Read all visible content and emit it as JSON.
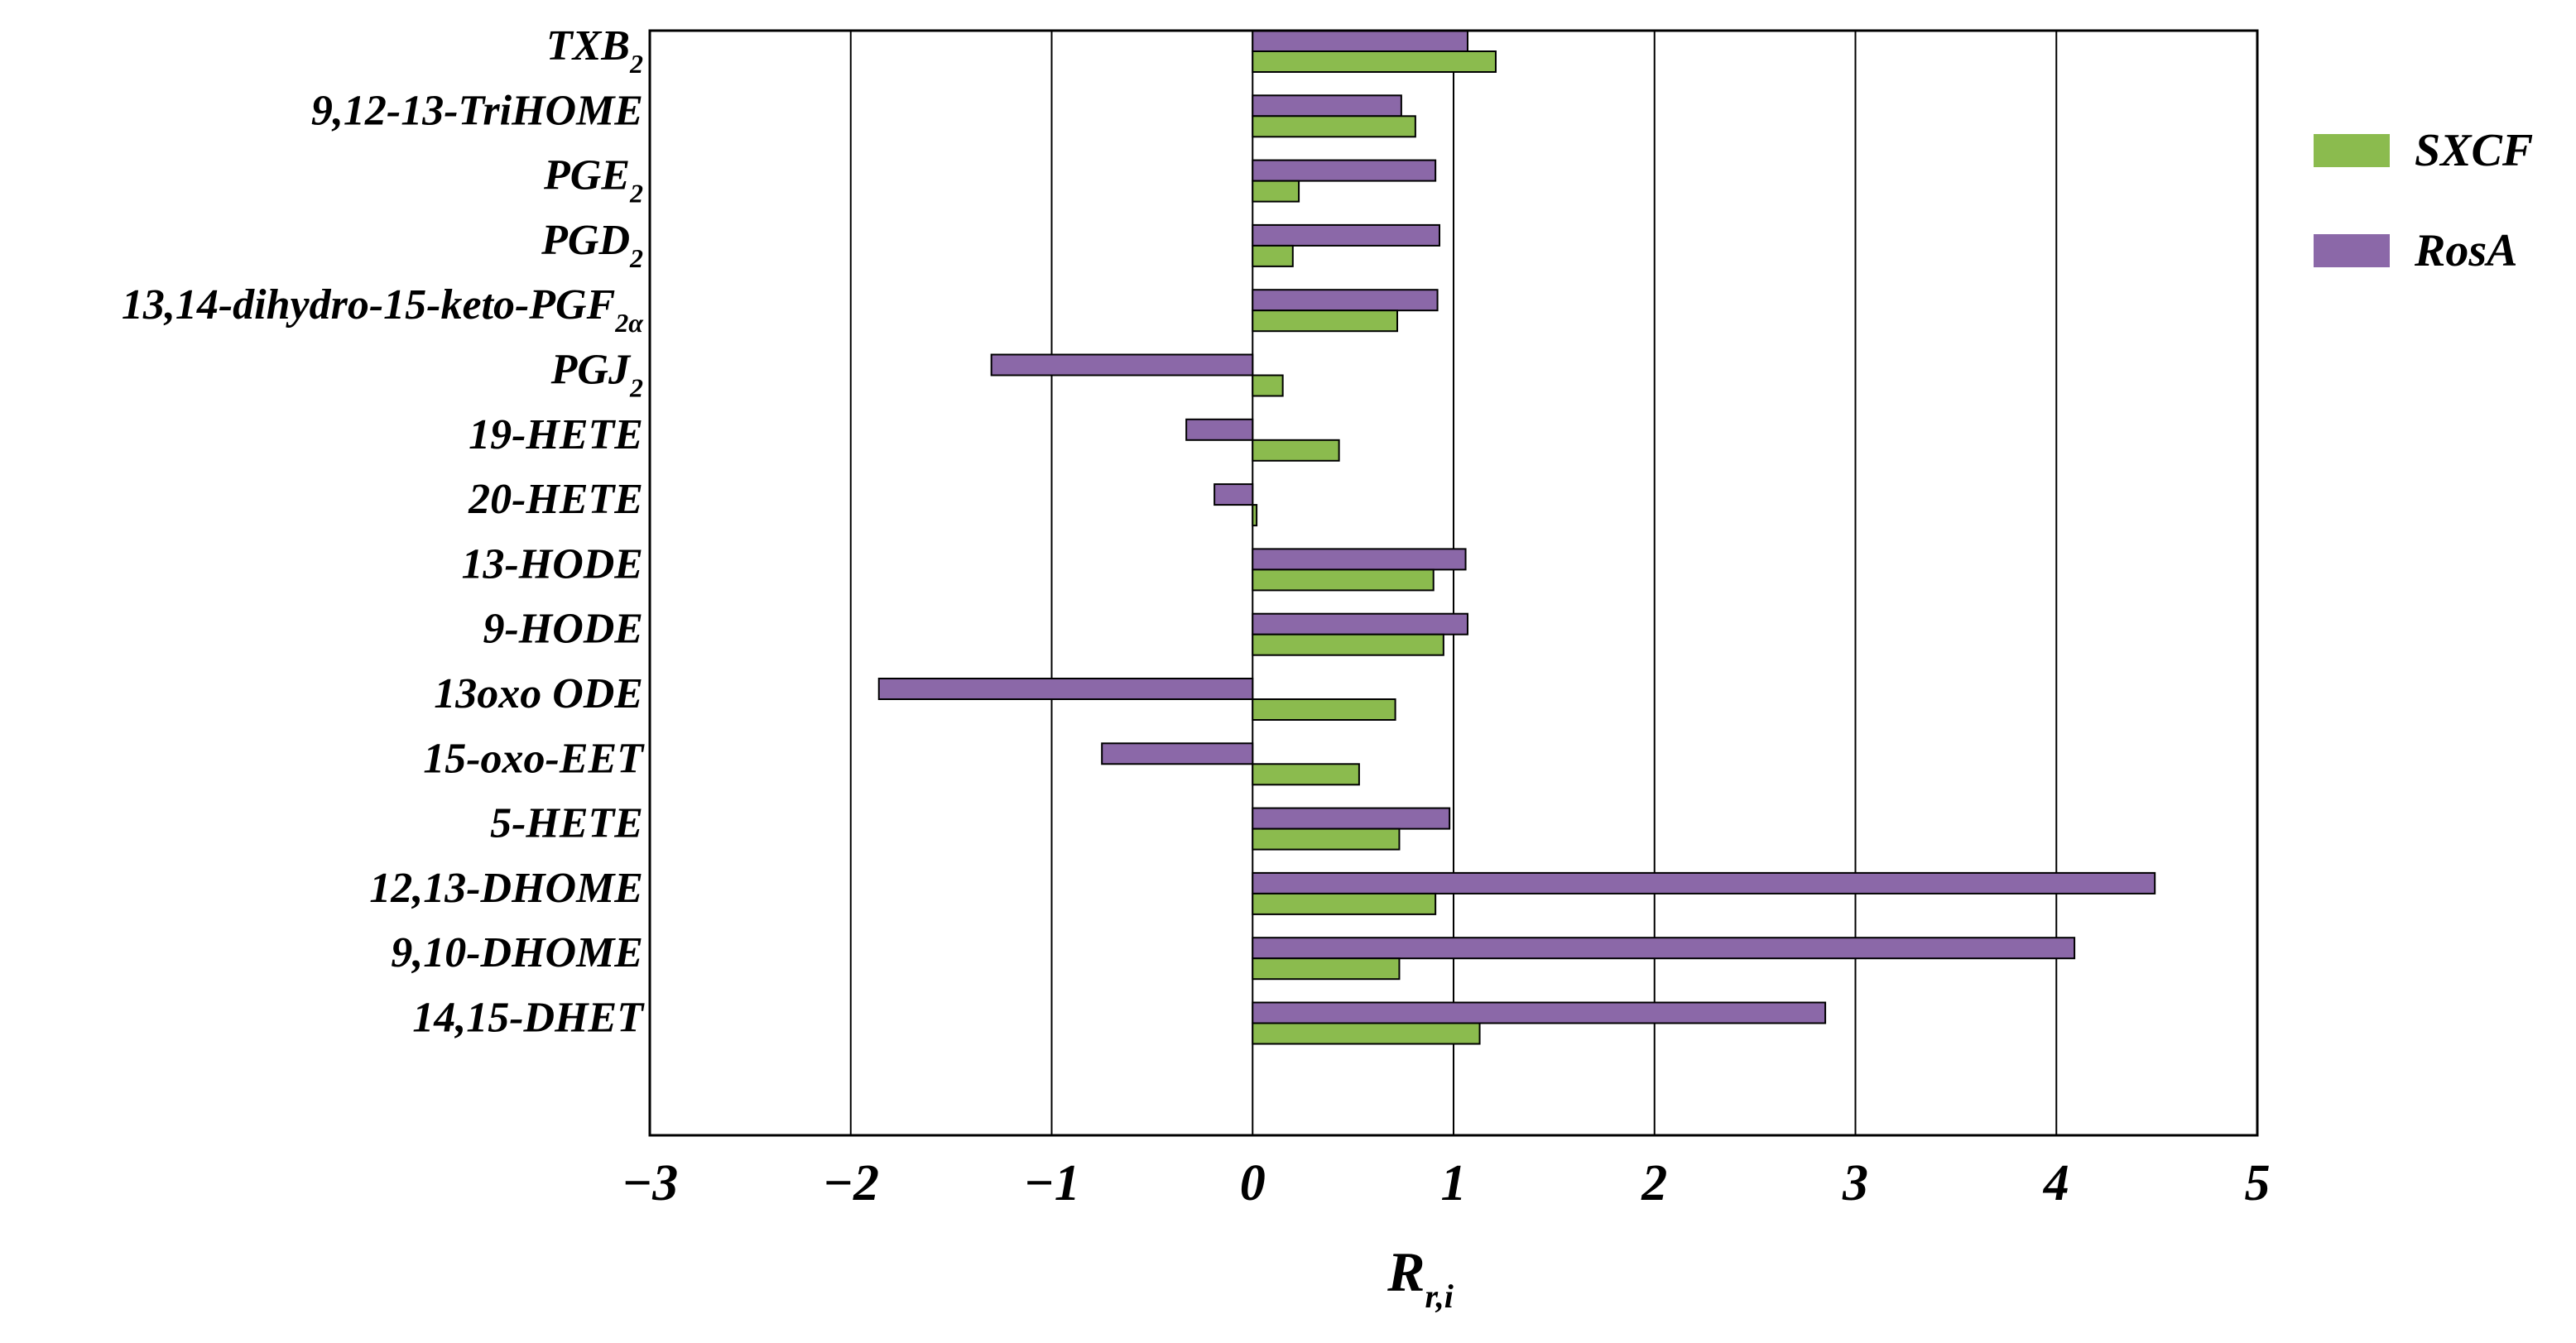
{
  "chart_data": {
    "type": "bar",
    "orientation": "horizontal",
    "categories": [
      "TXB2",
      "9,12-13-TriHOME",
      "PGE2",
      "PGD2",
      "13,14-dihydro-15-keto-PGF2α",
      "PGJ2",
      "19-HETE",
      "20-HETE",
      "13-HODE",
      "9-HODE",
      "13oxo ODE",
      "15-oxo-EET",
      "5-HETE",
      "12,13-DHOME",
      "9,10-DHOME",
      "14,15-DHET"
    ],
    "category_labels": [
      {
        "main": "TXB",
        "sub": "2"
      },
      {
        "main": "9,12-13-TriHOME",
        "sub": ""
      },
      {
        "main": "PGE",
        "sub": "2"
      },
      {
        "main": "PGD",
        "sub": "2"
      },
      {
        "main": "13,14-dihydro-15-keto-PGF",
        "sub": "2α"
      },
      {
        "main": "PGJ",
        "sub": "2"
      },
      {
        "main": "19-HETE",
        "sub": ""
      },
      {
        "main": "20-HETE",
        "sub": ""
      },
      {
        "main": "13-HODE",
        "sub": ""
      },
      {
        "main": "9-HODE",
        "sub": ""
      },
      {
        "main": "13oxo ODE",
        "sub": ""
      },
      {
        "main": "15-oxo-EET",
        "sub": ""
      },
      {
        "main": "5-HETE",
        "sub": ""
      },
      {
        "main": "12,13-DHOME",
        "sub": ""
      },
      {
        "main": "9,10-DHOME",
        "sub": ""
      },
      {
        "main": "14,15-DHET",
        "sub": ""
      }
    ],
    "series": [
      {
        "name": "RosA",
        "color": "#8B68A8",
        "values": [
          1.07,
          0.74,
          0.91,
          0.93,
          0.92,
          -1.3,
          -0.33,
          -0.19,
          1.06,
          1.07,
          -1.86,
          -0.75,
          0.98,
          4.49,
          4.09,
          2.85
        ]
      },
      {
        "name": "SXCF",
        "color": "#8BBB4E",
        "values": [
          1.21,
          0.81,
          0.23,
          0.2,
          0.72,
          0.15,
          0.43,
          0.02,
          0.9,
          0.95,
          0.71,
          0.53,
          0.73,
          0.91,
          0.73,
          1.13
        ]
      }
    ],
    "legend": [
      {
        "name": "SXCF",
        "color": "#8BBB4E"
      },
      {
        "name": "RosA",
        "color": "#8B68A8"
      }
    ],
    "x_ticks": [
      "−3",
      "−2",
      "−1",
      "0",
      "1",
      "2",
      "3",
      "4",
      "5"
    ],
    "x_tick_values": [
      -3,
      -2,
      -1,
      0,
      1,
      2,
      3,
      4,
      5
    ],
    "xlim": [
      -3,
      5
    ],
    "xlabel": {
      "main": "R",
      "sub": "r,i"
    },
    "ylabel": "",
    "title": "",
    "grid": "vertical",
    "legend_position": "right"
  }
}
